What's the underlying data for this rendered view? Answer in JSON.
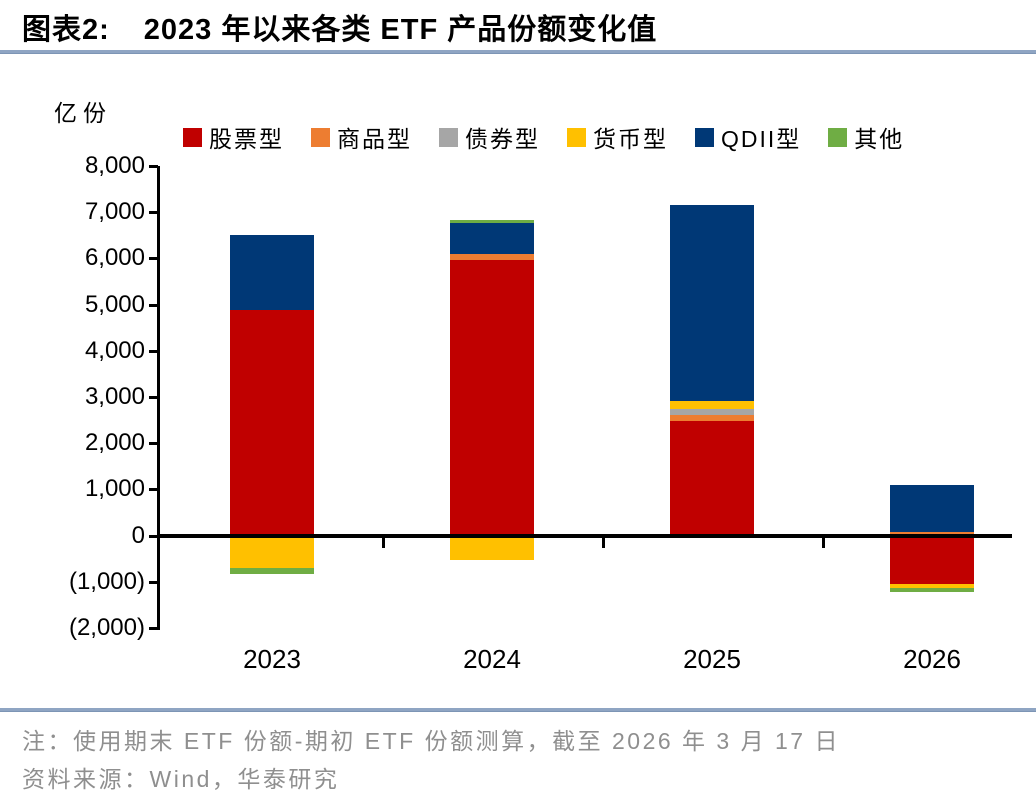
{
  "header": {
    "label": "图表2:",
    "title": "2023 年以来各类 ETF 产品份额变化值"
  },
  "chart_data": {
    "type": "bar",
    "stacked": true,
    "unit_label": "亿份",
    "categories": [
      "2023",
      "2024",
      "2025",
      "2026"
    ],
    "series": [
      {
        "name": "股票型",
        "color": "#C00000",
        "values": [
          4880,
          5970,
          2490,
          -1040
        ]
      },
      {
        "name": "商品型",
        "color": "#ED7D31",
        "values": [
          0,
          135,
          130,
          80
        ]
      },
      {
        "name": "债券型",
        "color": "#A6A6A6",
        "values": [
          0,
          0,
          110,
          0
        ]
      },
      {
        "name": "货币型",
        "color": "#FFC000",
        "values": [
          -700,
          -520,
          175,
          -90
        ]
      },
      {
        "name": "QDII型",
        "color": "#003876",
        "values": [
          1630,
          670,
          4250,
          1020
        ]
      },
      {
        "name": "其他",
        "color": "#6FAD44",
        "values": [
          -130,
          50,
          -40,
          -90
        ]
      }
    ],
    "ylim": [
      -2000,
      8000
    ],
    "y_ticks": [
      {
        "value": 8000,
        "label": "8,000"
      },
      {
        "value": 7000,
        "label": "7,000"
      },
      {
        "value": 6000,
        "label": "6,000"
      },
      {
        "value": 5000,
        "label": "5,000"
      },
      {
        "value": 4000,
        "label": "4,000"
      },
      {
        "value": 3000,
        "label": "3,000"
      },
      {
        "value": 2000,
        "label": "2,000"
      },
      {
        "value": 1000,
        "label": "1,000"
      },
      {
        "value": 0,
        "label": "0"
      },
      {
        "value": -1000,
        "label": "(1,000)"
      },
      {
        "value": -2000,
        "label": "(2,000)"
      }
    ],
    "legend_position": "top",
    "grid": false
  },
  "footer": {
    "note": "注：使用期末 ETF 份额-期初 ETF 份额测算，截至 2026 年 3 月 17 日",
    "source": "资料来源：Wind，华泰研究"
  },
  "colors": {
    "divider": "#8FA5C3",
    "axis": "#000000",
    "note_text": "#8F8F8F"
  }
}
